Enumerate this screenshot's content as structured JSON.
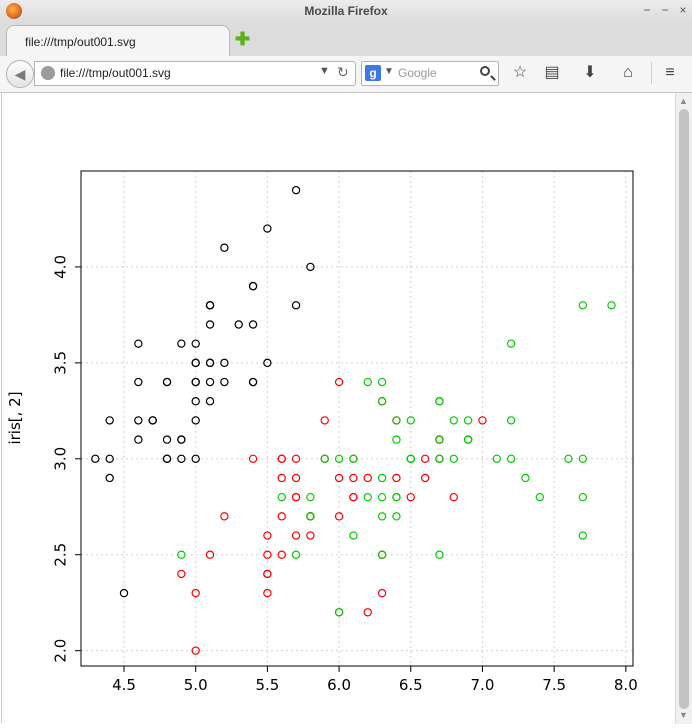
{
  "window": {
    "title": "Mozilla Firefox",
    "controls": [
      "−",
      "−",
      "×"
    ]
  },
  "tab": {
    "label": "file:///tmp/out001.svg"
  },
  "navbar": {
    "url": "file:///tmp/out001.svg",
    "search_placeholder": "Google",
    "search_engine_icon": "google-icon"
  },
  "colors": {
    "setosa": "#000000",
    "versicolor": "#ff0000",
    "virginica": "#00cd00",
    "grid": "#d3d3d3"
  },
  "chart_data": {
    "type": "scatter",
    "ylabel": "iris[, 2]",
    "xlabel": "",
    "title": "",
    "xlim": [
      4.2,
      8.05
    ],
    "ylim": [
      1.92,
      4.5
    ],
    "x_ticks": [
      4.5,
      5.0,
      5.5,
      6.0,
      6.5,
      7.0,
      7.5,
      8.0
    ],
    "x_tick_labels": [
      "4.5",
      "5.0",
      "5.5",
      "6.0",
      "6.5",
      "7.0",
      "7.5",
      "8.0"
    ],
    "y_ticks": [
      2.0,
      2.5,
      3.0,
      3.5,
      4.0
    ],
    "y_tick_labels": [
      "2.0",
      "2.5",
      "3.0",
      "3.5",
      "4.0"
    ],
    "grid": true,
    "series": [
      {
        "color": "#000000",
        "points": [
          [
            5.1,
            3.5
          ],
          [
            4.9,
            3.0
          ],
          [
            4.7,
            3.2
          ],
          [
            4.6,
            3.1
          ],
          [
            5.0,
            3.6
          ],
          [
            5.4,
            3.9
          ],
          [
            4.6,
            3.4
          ],
          [
            5.0,
            3.4
          ],
          [
            4.4,
            2.9
          ],
          [
            4.9,
            3.1
          ],
          [
            5.4,
            3.7
          ],
          [
            4.8,
            3.4
          ],
          [
            4.8,
            3.0
          ],
          [
            4.3,
            3.0
          ],
          [
            5.8,
            4.0
          ],
          [
            5.7,
            4.4
          ],
          [
            5.4,
            3.9
          ],
          [
            5.1,
            3.5
          ],
          [
            5.7,
            3.8
          ],
          [
            5.1,
            3.8
          ],
          [
            5.4,
            3.4
          ],
          [
            5.1,
            3.7
          ],
          [
            4.6,
            3.6
          ],
          [
            5.1,
            3.3
          ],
          [
            4.8,
            3.4
          ],
          [
            5.0,
            3.0
          ],
          [
            5.0,
            3.4
          ],
          [
            5.2,
            3.5
          ],
          [
            5.2,
            3.4
          ],
          [
            4.7,
            3.2
          ],
          [
            4.8,
            3.1
          ],
          [
            5.4,
            3.4
          ],
          [
            5.2,
            4.1
          ],
          [
            5.5,
            4.2
          ],
          [
            4.9,
            3.1
          ],
          [
            5.0,
            3.2
          ],
          [
            5.5,
            3.5
          ],
          [
            4.9,
            3.6
          ],
          [
            4.4,
            3.0
          ],
          [
            5.1,
            3.4
          ],
          [
            5.0,
            3.5
          ],
          [
            4.5,
            2.3
          ],
          [
            4.4,
            3.2
          ],
          [
            5.0,
            3.5
          ],
          [
            5.1,
            3.8
          ],
          [
            4.8,
            3.0
          ],
          [
            5.1,
            3.8
          ],
          [
            4.6,
            3.2
          ],
          [
            5.3,
            3.7
          ],
          [
            5.0,
            3.3
          ]
        ]
      },
      {
        "color": "#ff0000",
        "points": [
          [
            7.0,
            3.2
          ],
          [
            6.4,
            3.2
          ],
          [
            6.9,
            3.1
          ],
          [
            5.5,
            2.3
          ],
          [
            6.5,
            2.8
          ],
          [
            5.7,
            2.8
          ],
          [
            6.3,
            3.3
          ],
          [
            4.9,
            2.4
          ],
          [
            6.6,
            2.9
          ],
          [
            5.2,
            2.7
          ],
          [
            5.0,
            2.0
          ],
          [
            5.9,
            3.0
          ],
          [
            6.0,
            2.2
          ],
          [
            6.1,
            2.9
          ],
          [
            5.6,
            2.9
          ],
          [
            6.7,
            3.1
          ],
          [
            5.6,
            3.0
          ],
          [
            5.8,
            2.7
          ],
          [
            6.2,
            2.2
          ],
          [
            5.6,
            2.5
          ],
          [
            5.9,
            3.2
          ],
          [
            6.1,
            2.8
          ],
          [
            6.3,
            2.5
          ],
          [
            6.1,
            2.8
          ],
          [
            6.4,
            2.9
          ],
          [
            6.6,
            3.0
          ],
          [
            6.8,
            2.8
          ],
          [
            6.7,
            3.0
          ],
          [
            6.0,
            2.9
          ],
          [
            5.7,
            2.6
          ],
          [
            5.5,
            2.4
          ],
          [
            5.5,
            2.4
          ],
          [
            5.8,
            2.7
          ],
          [
            6.0,
            2.7
          ],
          [
            5.4,
            3.0
          ],
          [
            6.0,
            3.4
          ],
          [
            6.7,
            3.1
          ],
          [
            6.3,
            2.3
          ],
          [
            5.6,
            3.0
          ],
          [
            5.5,
            2.5
          ],
          [
            5.5,
            2.6
          ],
          [
            6.1,
            3.0
          ],
          [
            5.8,
            2.6
          ],
          [
            5.0,
            2.3
          ],
          [
            5.6,
            2.7
          ],
          [
            5.7,
            3.0
          ],
          [
            5.7,
            2.9
          ],
          [
            6.2,
            2.9
          ],
          [
            5.1,
            2.5
          ],
          [
            5.7,
            2.8
          ]
        ]
      },
      {
        "color": "#00cd00",
        "points": [
          [
            6.3,
            3.3
          ],
          [
            5.8,
            2.7
          ],
          [
            7.1,
            3.0
          ],
          [
            6.3,
            2.9
          ],
          [
            6.5,
            3.0
          ],
          [
            7.6,
            3.0
          ],
          [
            4.9,
            2.5
          ],
          [
            7.3,
            2.9
          ],
          [
            6.7,
            2.5
          ],
          [
            7.2,
            3.6
          ],
          [
            6.5,
            3.2
          ],
          [
            6.4,
            2.7
          ],
          [
            6.8,
            3.0
          ],
          [
            5.7,
            2.5
          ],
          [
            5.8,
            2.8
          ],
          [
            6.4,
            3.2
          ],
          [
            6.5,
            3.0
          ],
          [
            7.7,
            3.8
          ],
          [
            7.7,
            2.6
          ],
          [
            6.0,
            2.2
          ],
          [
            6.9,
            3.2
          ],
          [
            5.6,
            2.8
          ],
          [
            7.7,
            2.8
          ],
          [
            6.3,
            2.7
          ],
          [
            6.7,
            3.3
          ],
          [
            7.2,
            3.2
          ],
          [
            6.2,
            2.8
          ],
          [
            6.1,
            3.0
          ],
          [
            6.4,
            2.8
          ],
          [
            7.2,
            3.0
          ],
          [
            7.4,
            2.8
          ],
          [
            7.9,
            3.8
          ],
          [
            6.4,
            2.8
          ],
          [
            6.3,
            2.8
          ],
          [
            6.1,
            2.6
          ],
          [
            7.7,
            3.0
          ],
          [
            6.3,
            3.4
          ],
          [
            6.4,
            3.1
          ],
          [
            6.0,
            3.0
          ],
          [
            6.9,
            3.1
          ],
          [
            6.7,
            3.1
          ],
          [
            6.9,
            3.1
          ],
          [
            5.8,
            2.7
          ],
          [
            6.8,
            3.2
          ],
          [
            6.7,
            3.3
          ],
          [
            6.7,
            3.0
          ],
          [
            6.3,
            2.5
          ],
          [
            6.5,
            3.0
          ],
          [
            6.2,
            3.4
          ],
          [
            5.9,
            3.0
          ]
        ]
      }
    ]
  }
}
